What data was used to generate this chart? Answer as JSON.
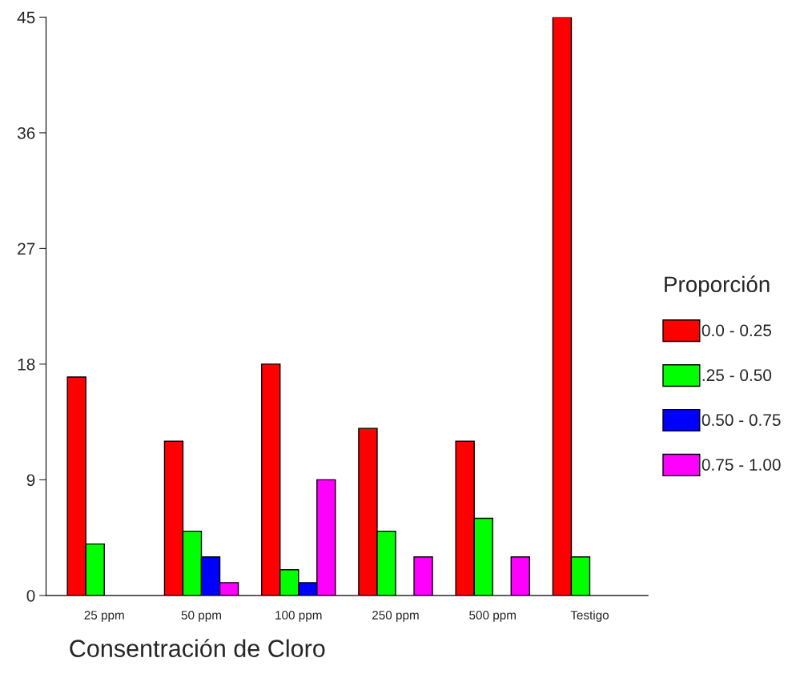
{
  "chart_data": {
    "type": "bar",
    "xlabel": "Consentración de Cloro",
    "legend_title": "Proporción",
    "legend": "right",
    "categories": [
      "25 ppm",
      "50 ppm",
      "100 ppm",
      "250 ppm",
      "500 ppm",
      "Testigo"
    ],
    "ylim": [
      0,
      45
    ],
    "yticks": [
      0,
      9,
      18,
      27,
      36,
      45
    ],
    "grid": false,
    "series": [
      {
        "name": "0.0 - 0.25",
        "color": "#ff0000",
        "values": [
          17,
          12,
          18,
          13,
          12,
          45
        ]
      },
      {
        "name": ".25 - 0.50",
        "color": "#00ff00",
        "values": [
          4,
          5,
          2,
          5,
          6,
          3
        ]
      },
      {
        "name": "0.50 - 0.75",
        "color": "#0000ff",
        "values": [
          0,
          3,
          1,
          0,
          0,
          0
        ]
      },
      {
        "name": "0.75 - 1.00",
        "color": "#ff00ff",
        "values": [
          0,
          1,
          9,
          3,
          3,
          0
        ]
      }
    ]
  }
}
